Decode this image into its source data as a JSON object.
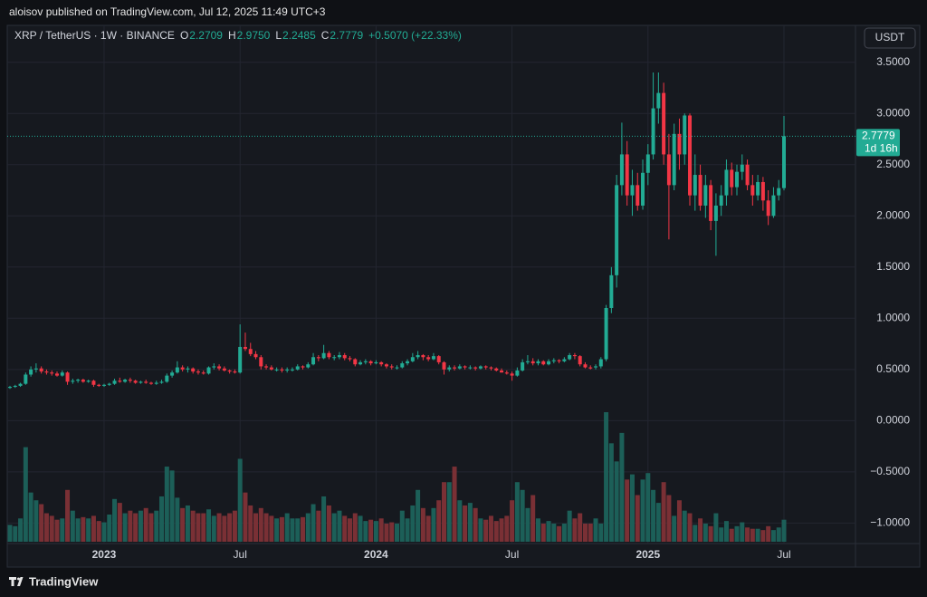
{
  "header": {
    "published": "aloisov published on TradingView.com, Jul 12, 2025 11:49 UTC+3",
    "brand": "TradingView"
  },
  "chart_data": {
    "type": "candlestick",
    "symbol": "XRP / TetherUS · 1W · BINANCE",
    "ohlc": [
      {
        "key": "O",
        "value": "2.2709"
      },
      {
        "key": "H",
        "value": "2.9750"
      },
      {
        "key": "L",
        "value": "2.2485"
      },
      {
        "key": "C",
        "value": "2.7779"
      }
    ],
    "change": "+0.5070 (+22.33%)",
    "currency": "USDT",
    "last_price_label": "2.7779",
    "countdown": "1d 16h",
    "up_color": "#22ab94",
    "down_color": "#f23645",
    "volume_up_color": "#1c5f58",
    "volume_down_color": "#7a3035",
    "grid": true,
    "ylim": [
      -1.2,
      3.86
    ],
    "yticks": [
      {
        "value": -1,
        "label": "−1.0000"
      },
      {
        "value": -0.5,
        "label": "−0.5000"
      },
      {
        "value": 0,
        "label": "0.0000"
      },
      {
        "value": 0.5,
        "label": "0.5000"
      },
      {
        "value": 1,
        "label": "1.0000"
      },
      {
        "value": 1.5,
        "label": "1.5000"
      },
      {
        "value": 2,
        "label": "2.0000"
      },
      {
        "value": 2.5,
        "label": "2.5000"
      },
      {
        "value": 3,
        "label": "3.0000"
      },
      {
        "value": 3.5,
        "label": "3.5000"
      }
    ],
    "xticks": [
      {
        "value": 18,
        "label": "2023"
      },
      {
        "value": 44,
        "label": "Jul"
      },
      {
        "value": 70,
        "label": "2024"
      },
      {
        "value": 96,
        "label": "Jul"
      },
      {
        "value": 122,
        "label": "2025"
      },
      {
        "value": 148,
        "label": "Jul"
      }
    ],
    "vlim": [
      0,
      100
    ],
    "candles": [
      [
        0.32,
        0.34,
        0.31,
        0.33,
        13
      ],
      [
        0.33,
        0.35,
        0.32,
        0.34,
        12
      ],
      [
        0.34,
        0.37,
        0.33,
        0.36,
        18
      ],
      [
        0.36,
        0.47,
        0.35,
        0.45,
        73
      ],
      [
        0.45,
        0.53,
        0.43,
        0.5,
        38
      ],
      [
        0.5,
        0.56,
        0.47,
        0.51,
        32
      ],
      [
        0.51,
        0.53,
        0.46,
        0.48,
        29
      ],
      [
        0.48,
        0.5,
        0.45,
        0.47,
        22
      ],
      [
        0.47,
        0.49,
        0.44,
        0.46,
        20
      ],
      [
        0.46,
        0.48,
        0.43,
        0.44,
        17
      ],
      [
        0.44,
        0.49,
        0.43,
        0.47,
        18
      ],
      [
        0.47,
        0.48,
        0.35,
        0.38,
        40
      ],
      [
        0.38,
        0.41,
        0.36,
        0.39,
        24
      ],
      [
        0.39,
        0.41,
        0.37,
        0.4,
        18
      ],
      [
        0.4,
        0.41,
        0.37,
        0.38,
        19
      ],
      [
        0.38,
        0.4,
        0.37,
        0.39,
        18
      ],
      [
        0.39,
        0.4,
        0.33,
        0.35,
        20
      ],
      [
        0.35,
        0.36,
        0.33,
        0.34,
        16
      ],
      [
        0.34,
        0.36,
        0.33,
        0.35,
        15
      ],
      [
        0.35,
        0.37,
        0.34,
        0.36,
        21
      ],
      [
        0.36,
        0.41,
        0.35,
        0.39,
        33
      ],
      [
        0.39,
        0.42,
        0.37,
        0.38,
        30
      ],
      [
        0.38,
        0.41,
        0.37,
        0.4,
        22
      ],
      [
        0.4,
        0.42,
        0.37,
        0.39,
        24
      ],
      [
        0.39,
        0.4,
        0.36,
        0.37,
        22
      ],
      [
        0.37,
        0.39,
        0.36,
        0.38,
        24
      ],
      [
        0.38,
        0.4,
        0.36,
        0.37,
        26
      ],
      [
        0.37,
        0.38,
        0.35,
        0.36,
        22
      ],
      [
        0.36,
        0.39,
        0.35,
        0.37,
        24
      ],
      [
        0.37,
        0.4,
        0.36,
        0.38,
        35
      ],
      [
        0.38,
        0.46,
        0.37,
        0.44,
        58
      ],
      [
        0.44,
        0.49,
        0.42,
        0.47,
        55
      ],
      [
        0.47,
        0.58,
        0.46,
        0.52,
        34
      ],
      [
        0.52,
        0.54,
        0.48,
        0.5,
        26
      ],
      [
        0.5,
        0.53,
        0.47,
        0.51,
        28
      ],
      [
        0.51,
        0.52,
        0.46,
        0.48,
        24
      ],
      [
        0.48,
        0.5,
        0.45,
        0.47,
        22
      ],
      [
        0.47,
        0.49,
        0.45,
        0.46,
        22
      ],
      [
        0.46,
        0.53,
        0.45,
        0.52,
        25
      ],
      [
        0.52,
        0.56,
        0.5,
        0.53,
        20
      ],
      [
        0.53,
        0.55,
        0.49,
        0.51,
        22
      ],
      [
        0.51,
        0.53,
        0.48,
        0.49,
        20
      ],
      [
        0.49,
        0.5,
        0.46,
        0.48,
        22
      ],
      [
        0.48,
        0.5,
        0.46,
        0.47,
        24
      ],
      [
        0.47,
        0.94,
        0.46,
        0.72,
        64
      ],
      [
        0.72,
        0.86,
        0.68,
        0.7,
        38
      ],
      [
        0.7,
        0.76,
        0.63,
        0.65,
        28
      ],
      [
        0.65,
        0.68,
        0.6,
        0.62,
        22
      ],
      [
        0.62,
        0.64,
        0.5,
        0.53,
        26
      ],
      [
        0.53,
        0.55,
        0.5,
        0.52,
        22
      ],
      [
        0.52,
        0.54,
        0.49,
        0.5,
        20
      ],
      [
        0.5,
        0.52,
        0.48,
        0.5,
        18
      ],
      [
        0.5,
        0.52,
        0.47,
        0.49,
        19
      ],
      [
        0.49,
        0.52,
        0.47,
        0.5,
        22
      ],
      [
        0.5,
        0.52,
        0.48,
        0.5,
        18
      ],
      [
        0.5,
        0.55,
        0.49,
        0.53,
        18
      ],
      [
        0.53,
        0.54,
        0.5,
        0.52,
        19
      ],
      [
        0.52,
        0.57,
        0.51,
        0.55,
        22
      ],
      [
        0.55,
        0.66,
        0.54,
        0.62,
        29
      ],
      [
        0.62,
        0.64,
        0.58,
        0.61,
        24
      ],
      [
        0.61,
        0.74,
        0.6,
        0.66,
        35
      ],
      [
        0.66,
        0.68,
        0.6,
        0.62,
        28
      ],
      [
        0.62,
        0.64,
        0.59,
        0.62,
        22
      ],
      [
        0.62,
        0.67,
        0.6,
        0.64,
        24
      ],
      [
        0.64,
        0.66,
        0.59,
        0.61,
        20
      ],
      [
        0.61,
        0.63,
        0.58,
        0.6,
        18
      ],
      [
        0.6,
        0.61,
        0.53,
        0.55,
        22
      ],
      [
        0.55,
        0.59,
        0.54,
        0.57,
        20
      ],
      [
        0.57,
        0.6,
        0.55,
        0.58,
        16
      ],
      [
        0.58,
        0.59,
        0.54,
        0.56,
        17
      ],
      [
        0.56,
        0.59,
        0.55,
        0.57,
        16
      ],
      [
        0.57,
        0.58,
        0.53,
        0.55,
        18
      ],
      [
        0.55,
        0.56,
        0.51,
        0.53,
        14
      ],
      [
        0.53,
        0.55,
        0.5,
        0.52,
        15
      ],
      [
        0.52,
        0.54,
        0.5,
        0.52,
        14
      ],
      [
        0.52,
        0.58,
        0.51,
        0.56,
        24
      ],
      [
        0.56,
        0.6,
        0.54,
        0.58,
        18
      ],
      [
        0.58,
        0.66,
        0.57,
        0.62,
        28
      ],
      [
        0.62,
        0.68,
        0.6,
        0.64,
        40
      ],
      [
        0.64,
        0.65,
        0.59,
        0.62,
        26
      ],
      [
        0.62,
        0.64,
        0.58,
        0.6,
        20
      ],
      [
        0.6,
        0.66,
        0.59,
        0.63,
        26
      ],
      [
        0.63,
        0.64,
        0.55,
        0.57,
        32
      ],
      [
        0.57,
        0.58,
        0.45,
        0.5,
        46
      ],
      [
        0.5,
        0.54,
        0.48,
        0.52,
        46
      ],
      [
        0.52,
        0.54,
        0.49,
        0.51,
        58
      ],
      [
        0.51,
        0.55,
        0.5,
        0.53,
        32
      ],
      [
        0.53,
        0.54,
        0.5,
        0.52,
        28
      ],
      [
        0.52,
        0.54,
        0.5,
        0.52,
        30
      ],
      [
        0.52,
        0.53,
        0.49,
        0.51,
        26
      ],
      [
        0.51,
        0.54,
        0.5,
        0.53,
        18
      ],
      [
        0.53,
        0.54,
        0.5,
        0.52,
        17
      ],
      [
        0.52,
        0.53,
        0.49,
        0.51,
        20
      ],
      [
        0.51,
        0.52,
        0.48,
        0.49,
        16
      ],
      [
        0.49,
        0.51,
        0.47,
        0.47,
        18
      ],
      [
        0.47,
        0.49,
        0.45,
        0.46,
        20
      ],
      [
        0.46,
        0.48,
        0.39,
        0.44,
        32
      ],
      [
        0.44,
        0.52,
        0.43,
        0.49,
        46
      ],
      [
        0.49,
        0.6,
        0.48,
        0.57,
        40
      ],
      [
        0.57,
        0.64,
        0.55,
        0.58,
        26
      ],
      [
        0.58,
        0.61,
        0.54,
        0.56,
        36
      ],
      [
        0.56,
        0.6,
        0.54,
        0.58,
        18
      ],
      [
        0.58,
        0.59,
        0.54,
        0.55,
        14
      ],
      [
        0.55,
        0.6,
        0.54,
        0.58,
        16
      ],
      [
        0.58,
        0.61,
        0.56,
        0.59,
        14
      ],
      [
        0.59,
        0.6,
        0.56,
        0.58,
        12
      ],
      [
        0.58,
        0.62,
        0.57,
        0.6,
        14
      ],
      [
        0.6,
        0.66,
        0.59,
        0.64,
        24
      ],
      [
        0.64,
        0.66,
        0.6,
        0.63,
        18
      ],
      [
        0.63,
        0.64,
        0.53,
        0.55,
        22
      ],
      [
        0.55,
        0.57,
        0.51,
        0.52,
        14
      ],
      [
        0.52,
        0.54,
        0.5,
        0.51,
        14
      ],
      [
        0.52,
        0.55,
        0.5,
        0.53,
        18
      ],
      [
        0.53,
        0.62,
        0.51,
        0.6,
        14
      ],
      [
        0.6,
        1.13,
        0.58,
        1.1,
        100
      ],
      [
        1.1,
        1.5,
        1.05,
        1.42,
        76
      ],
      [
        1.42,
        2.4,
        1.3,
        2.3,
        62
      ],
      [
        2.3,
        2.91,
        2.2,
        2.6,
        84
      ],
      [
        2.6,
        2.73,
        2.1,
        2.2,
        48
      ],
      [
        2.2,
        2.45,
        2.0,
        2.3,
        52
      ],
      [
        2.3,
        2.42,
        2.05,
        2.1,
        36
      ],
      [
        2.1,
        2.55,
        2.06,
        2.42,
        48
      ],
      [
        2.42,
        2.7,
        2.3,
        2.6,
        53
      ],
      [
        2.6,
        3.4,
        2.55,
        3.05,
        40
      ],
      [
        3.05,
        3.4,
        2.9,
        3.2,
        30
      ],
      [
        3.2,
        3.3,
        2.5,
        2.6,
        46
      ],
      [
        2.6,
        2.8,
        1.77,
        2.3,
        36
      ],
      [
        2.3,
        2.9,
        2.25,
        2.8,
        20
      ],
      [
        2.8,
        2.95,
        2.45,
        2.6,
        32
      ],
      [
        2.6,
        3.0,
        2.5,
        2.98,
        24
      ],
      [
        2.98,
        3.0,
        2.1,
        2.2,
        22
      ],
      [
        2.2,
        2.6,
        2.05,
        2.4,
        13
      ],
      [
        2.4,
        2.5,
        2.05,
        2.1,
        18
      ],
      [
        2.1,
        2.4,
        1.98,
        2.3,
        14
      ],
      [
        2.3,
        2.35,
        1.86,
        1.95,
        12
      ],
      [
        1.95,
        2.22,
        1.61,
        2.1,
        22
      ],
      [
        2.1,
        2.3,
        2.0,
        2.2,
        11
      ],
      [
        2.2,
        2.55,
        2.1,
        2.45,
        16
      ],
      [
        2.45,
        2.52,
        2.2,
        2.28,
        10
      ],
      [
        2.28,
        2.5,
        2.2,
        2.43,
        12
      ],
      [
        2.43,
        2.6,
        2.35,
        2.5,
        15
      ],
      [
        2.5,
        2.55,
        2.25,
        2.3,
        11
      ],
      [
        2.3,
        2.4,
        2.1,
        2.2,
        10
      ],
      [
        2.2,
        2.4,
        2.15,
        2.33,
        10
      ],
      [
        2.33,
        2.38,
        2.05,
        2.15,
        9
      ],
      [
        2.15,
        2.25,
        1.91,
        2.0,
        12
      ],
      [
        2.0,
        2.28,
        1.98,
        2.2,
        9
      ],
      [
        2.2,
        2.35,
        2.15,
        2.2709,
        11
      ],
      [
        2.2709,
        2.975,
        2.2485,
        2.7779,
        17
      ]
    ]
  }
}
